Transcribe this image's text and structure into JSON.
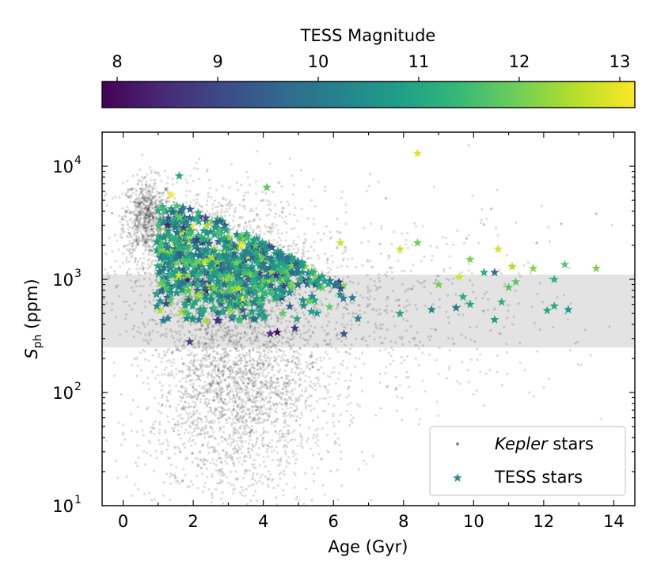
{
  "chart_data": {
    "type": "scatter",
    "title": "",
    "xlabel": "Age (Gyr)",
    "ylabel_main": "S",
    "ylabel_sub": "ph",
    "ylabel_unit": " (ppm)",
    "x_range": [
      -0.6,
      14.6
    ],
    "y_range": [
      10,
      20000
    ],
    "y_scale": "log",
    "x_ticks": [
      0,
      2,
      4,
      6,
      8,
      10,
      12,
      14
    ],
    "x_tick_labels": [
      "0",
      "2",
      "4",
      "6",
      "8",
      "10",
      "12",
      "14"
    ],
    "y_ticks": [
      10,
      100,
      1000,
      10000
    ],
    "y_tick_bases": [
      "10",
      "10",
      "10",
      "10"
    ],
    "y_tick_exps": [
      "1",
      "2",
      "3",
      "4"
    ],
    "shaded_band": {
      "y_min": 250,
      "y_max": 1100,
      "color": "#e3e3e3"
    },
    "colorbar": {
      "label": "TESS Magnitude",
      "range": [
        7.85,
        13.15
      ],
      "ticks": [
        8,
        9,
        10,
        11,
        12,
        13
      ],
      "tick_labels": [
        "8",
        "9",
        "10",
        "11",
        "12",
        "13"
      ],
      "colormap": "viridis",
      "stops": [
        "#440154",
        "#482878",
        "#3e4989",
        "#31688e",
        "#26828e",
        "#1f9e89",
        "#35b779",
        "#6ece58",
        "#b5de2b",
        "#fde725"
      ]
    },
    "legend": {
      "position": "lower-right",
      "entries": [
        {
          "label_italic": "Kepler",
          "label_rest": " stars",
          "marker": "dot",
          "color": "#888888"
        },
        {
          "label_italic": "",
          "label_rest": "TESS stars",
          "marker": "star",
          "color": "#2a8a8a"
        }
      ]
    },
    "series": [
      {
        "name": "Kepler stars",
        "marker": "dot",
        "color": "#000000",
        "note": "approximate density clusters (data units), rendered as a cloud of points",
        "clusters": [
          {
            "x": 0.7,
            "y": 3500,
            "sx": 0.35,
            "sy_dex": 0.17,
            "n": 800
          },
          {
            "x": 2.7,
            "y": 1300,
            "sx": 1.3,
            "sy_dex": 0.35,
            "n": 1800
          },
          {
            "x": 3.3,
            "y": 110,
            "sx": 1.2,
            "sy_dex": 0.35,
            "n": 1800
          },
          {
            "x": 6.0,
            "y": 500,
            "sx": 3.2,
            "sy_dex": 0.45,
            "n": 1000
          },
          {
            "x": 3.0,
            "y": 25,
            "sx": 1.5,
            "sy_dex": 0.3,
            "n": 350
          }
        ],
        "points": [
          {
            "x": 13.5,
            "y": 3800
          },
          {
            "x": 11.8,
            "y": 2100
          },
          {
            "x": 9.8,
            "y": 2300
          },
          {
            "x": 7.5,
            "y": 5200
          },
          {
            "x": 12.5,
            "y": 3100
          },
          {
            "x": 10.5,
            "y": 4200
          }
        ]
      },
      {
        "name": "TESS stars",
        "marker": "star",
        "color_by": "magnitude",
        "clusters": [
          {
            "x": 3.2,
            "y": 1200,
            "sx": 1.2,
            "sy_dex": 0.2,
            "n": 750
          },
          {
            "x": 1.5,
            "y": 2200,
            "sx": 0.35,
            "sy_dex": 0.2,
            "n": 160
          }
        ],
        "points": [
          {
            "x": 8.4,
            "y": 13000,
            "mag": 12.9
          },
          {
            "x": 1.6,
            "y": 8200,
            "mag": 11.1
          },
          {
            "x": 4.1,
            "y": 6500,
            "mag": 11.8
          },
          {
            "x": 6.2,
            "y": 2100,
            "mag": 12.8
          },
          {
            "x": 8.4,
            "y": 2100,
            "mag": 12.0
          },
          {
            "x": 7.9,
            "y": 1850,
            "mag": 12.8
          },
          {
            "x": 10.7,
            "y": 1850,
            "mag": 12.8
          },
          {
            "x": 9.9,
            "y": 1500,
            "mag": 12.1
          },
          {
            "x": 11.1,
            "y": 1300,
            "mag": 12.5
          },
          {
            "x": 11.7,
            "y": 1250,
            "mag": 12.2
          },
          {
            "x": 12.6,
            "y": 1350,
            "mag": 11.8
          },
          {
            "x": 13.5,
            "y": 1250,
            "mag": 12.1
          },
          {
            "x": 10.3,
            "y": 1150,
            "mag": 11.1
          },
          {
            "x": 10.6,
            "y": 1150,
            "mag": 9.7
          },
          {
            "x": 9.6,
            "y": 1050,
            "mag": 12.8
          },
          {
            "x": 12.3,
            "y": 1000,
            "mag": 11.2
          },
          {
            "x": 11.2,
            "y": 950,
            "mag": 11.8
          },
          {
            "x": 9.0,
            "y": 900,
            "mag": 12.0
          },
          {
            "x": 11.0,
            "y": 850,
            "mag": 11.7
          },
          {
            "x": 9.7,
            "y": 700,
            "mag": 11.2
          },
          {
            "x": 9.9,
            "y": 600,
            "mag": 11.0
          },
          {
            "x": 10.8,
            "y": 630,
            "mag": 11.1
          },
          {
            "x": 9.5,
            "y": 560,
            "mag": 10.0
          },
          {
            "x": 8.8,
            "y": 540,
            "mag": 10.2
          },
          {
            "x": 12.3,
            "y": 580,
            "mag": 11.1
          },
          {
            "x": 12.1,
            "y": 530,
            "mag": 11.0
          },
          {
            "x": 12.7,
            "y": 540,
            "mag": 10.6
          },
          {
            "x": 10.6,
            "y": 440,
            "mag": 10.8
          },
          {
            "x": 7.9,
            "y": 500,
            "mag": 11.0
          },
          {
            "x": 6.7,
            "y": 450,
            "mag": 10.2
          },
          {
            "x": 6.3,
            "y": 330,
            "mag": 9.4
          },
          {
            "x": 4.4,
            "y": 340,
            "mag": 8.0
          },
          {
            "x": 4.2,
            "y": 330,
            "mag": 8.6
          },
          {
            "x": 1.9,
            "y": 280,
            "mag": 8.9
          },
          {
            "x": 4.9,
            "y": 370,
            "mag": 8.7
          }
        ]
      }
    ]
  }
}
